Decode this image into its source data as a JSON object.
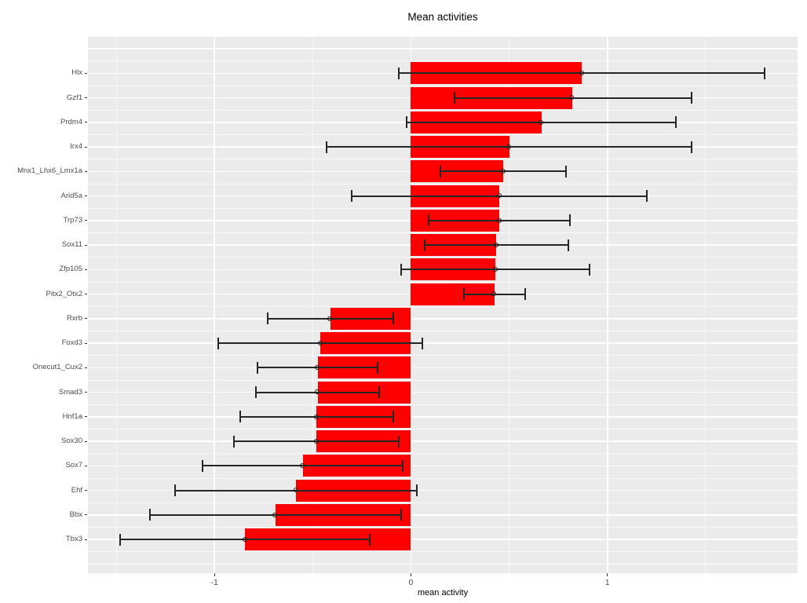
{
  "title": "Mean activities",
  "x_axis": {
    "label": "mean activity",
    "tick_labels": [
      "-1",
      "0",
      "1"
    ]
  },
  "colors": {
    "background": "#FFFFFF",
    "panel": "#EBEBEB",
    "grid_major": "#FFFFFF",
    "grid_minor": "#F5F5F5",
    "bar": "#FF0000",
    "error_bar": "#262626",
    "tick_label": "#4D4D4D",
    "text": "#000000"
  },
  "chart_data": {
    "type": "bar",
    "orientation": "horizontal",
    "title": "Mean activities",
    "xlabel": "mean activity",
    "ylabel": "",
    "grid": true,
    "xlim": [
      -1.644,
      1.968
    ],
    "xticks": [
      -1,
      0,
      1
    ],
    "xtick_labels": [
      "-1",
      "0",
      "1"
    ],
    "x_minor_ticks": [
      -1.5,
      -0.5,
      0.5,
      1.5
    ],
    "bar_color": "#FF0000",
    "categories": [
      "Hlx",
      "Gzf1",
      "Prdm4",
      "Irx4",
      "Mnx1_Lhx6_Lmx1a",
      "Arid5a",
      "Trp73",
      "Sox11",
      "Zfp105",
      "Pitx2_Otx2",
      "Rxrb",
      "Foxd3",
      "Onecut1_Cux2",
      "Smad3",
      "Hnf1a",
      "Sox30",
      "Sox7",
      "Ehf",
      "Bbx",
      "Tbx3"
    ],
    "series": [
      {
        "name": "mean activity",
        "values": [
          0.87,
          0.82,
          0.665,
          0.5,
          0.47,
          0.45,
          0.45,
          0.435,
          0.43,
          0.425,
          -0.41,
          -0.46,
          -0.475,
          -0.475,
          -0.48,
          -0.48,
          -0.55,
          -0.585,
          -0.69,
          -0.845
        ]
      }
    ],
    "error_bars": {
      "low": [
        -0.06,
        0.22,
        -0.02,
        -0.43,
        0.15,
        -0.3,
        0.09,
        0.07,
        -0.05,
        0.27,
        -0.73,
        -0.98,
        -0.78,
        -0.79,
        -0.87,
        -0.9,
        -1.06,
        -1.2,
        -1.33,
        -1.48
      ],
      "high": [
        1.8,
        1.43,
        1.35,
        1.43,
        0.79,
        1.2,
        0.81,
        0.8,
        0.91,
        0.58,
        -0.09,
        0.06,
        -0.17,
        -0.16,
        -0.09,
        -0.06,
        -0.04,
        0.03,
        -0.05,
        -0.21
      ]
    }
  }
}
